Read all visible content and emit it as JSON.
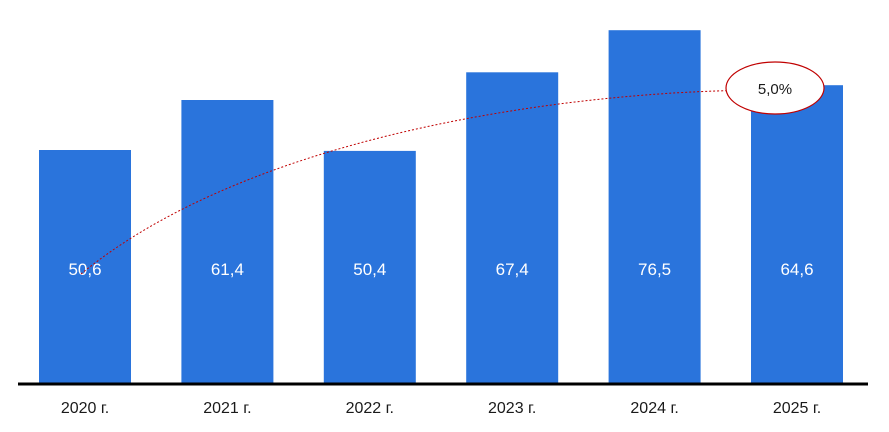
{
  "chart_data": {
    "type": "bar",
    "categories": [
      "2020 г.",
      "2021 г.",
      "2022 г.",
      "2023 г.",
      "2024 г.",
      "2025 г."
    ],
    "values": [
      50.6,
      61.4,
      50.4,
      67.4,
      76.5,
      64.6
    ],
    "value_labels": [
      "50,6",
      "61,4",
      "50,4",
      "67,4",
      "76,5",
      "64,6"
    ],
    "ylim": [
      0,
      80
    ],
    "grid": false,
    "annotation": {
      "label": "5,0%",
      "from_category": "2020 г.",
      "to_category": "2025 г."
    },
    "colors": {
      "bar": "#2a74dc",
      "axis": "#000000",
      "arrow": "#c00000",
      "ellipse": "#c00000"
    }
  }
}
